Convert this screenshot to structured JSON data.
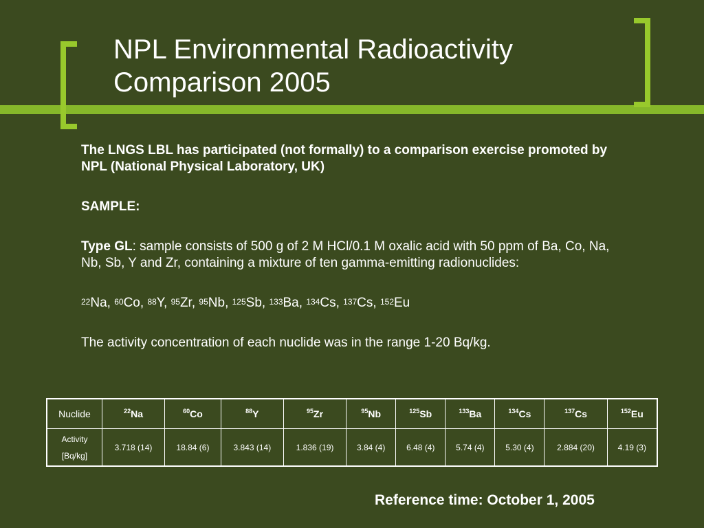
{
  "title": "NPL Environmental Radioactivity Comparison 2005",
  "intro": "The LNGS LBL has participated (not formally) to a comparison exercise promoted by NPL (National Physical Laboratory, UK)",
  "sample_heading": "SAMPLE:",
  "type_label": "Type GL",
  "type_text": ": sample consists of 500 g of 2 M HCl/0.1 M oxalic acid with 50 ppm of Ba, Co, Na, Nb, Sb, Y and Zr, containing a mixture of ten gamma-emitting radionuclides:",
  "nuclide_list": [
    {
      "mass": "22",
      "symbol": "Na",
      "sep": ", "
    },
    {
      "mass": "60",
      "symbol": "Co",
      "sep": ", "
    },
    {
      "mass": "88",
      "symbol": "Y",
      "sep": ", "
    },
    {
      "mass": "95",
      "symbol": "Zr",
      "sep": ", "
    },
    {
      "mass": "95",
      "symbol": "Nb",
      "sep": ", "
    },
    {
      "mass": "125",
      "symbol": "Sb",
      "sep": ", "
    },
    {
      "mass": "133",
      "symbol": "Ba",
      "sep": ", "
    },
    {
      "mass": "134",
      "symbol": "Cs",
      "sep": ", "
    },
    {
      "mass": "137",
      "symbol": "Cs",
      "sep": ", "
    },
    {
      "mass": "152",
      "symbol": "Eu",
      "sep": ""
    }
  ],
  "range_text": "The activity concentration of each nuclide was in the range 1-20 Bq/kg.",
  "table": {
    "header_label": "Nuclide",
    "row_label_line1": "Activity",
    "row_label_line2": "[Bq/kg]",
    "columns": [
      {
        "mass": "22",
        "symbol": "Na",
        "value": "3.718 (14)"
      },
      {
        "mass": "60",
        "symbol": "Co",
        "value": "18.84 (6)"
      },
      {
        "mass": "88",
        "symbol": "Y",
        "value": "3.843 (14)"
      },
      {
        "mass": "95",
        "symbol": "Zr",
        "value": "1.836 (19)"
      },
      {
        "mass": "95",
        "symbol": "Nb",
        "value": "3.84 (4)"
      },
      {
        "mass": "125",
        "symbol": "Sb",
        "value": "6.48 (4)"
      },
      {
        "mass": "133",
        "symbol": "Ba",
        "value": "5.74 (4)"
      },
      {
        "mass": "134",
        "symbol": "Cs",
        "value": "5.30 (4)"
      },
      {
        "mass": "137",
        "symbol": "Cs",
        "value": "2.884 (20)"
      },
      {
        "mass": "152",
        "symbol": "Eu",
        "value": "4.19 (3)"
      }
    ]
  },
  "reference_time": "Reference time: October 1, 2005",
  "colors": {
    "background": "#3b4a1f",
    "accent": "#98c92c",
    "text": "#ffffff"
  }
}
